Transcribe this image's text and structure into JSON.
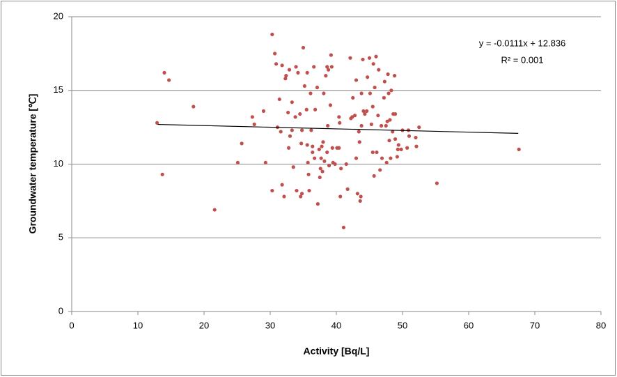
{
  "chart_data": {
    "type": "scatter",
    "xlabel": "Activity [Bq/L]",
    "ylabel": "Groundwater temperature [℃]",
    "xlim": [
      0,
      80
    ],
    "xticks": [
      0,
      10,
      20,
      30,
      40,
      50,
      60,
      70,
      80
    ],
    "ylim": [
      0,
      20
    ],
    "yticks": [
      0,
      5,
      10,
      15,
      20
    ],
    "grid": true,
    "series": [
      {
        "color": "#c0504d",
        "x": [
          12.9,
          13.7,
          14.0,
          14.7,
          18.4,
          21.6,
          25.7,
          25.1,
          27.3,
          27.6,
          29.0,
          29.3,
          30.3,
          30.3,
          30.7,
          30.9,
          31.1,
          31.4,
          31.6,
          31.8,
          31.8,
          32.1,
          32.3,
          32.4,
          32.7,
          32.8,
          32.9,
          33.0,
          33.3,
          33.3,
          33.5,
          33.8,
          33.9,
          34.0,
          34.2,
          34.5,
          34.6,
          34.8,
          35.0,
          34.8,
          34.7,
          35.2,
          35.6,
          35.5,
          35.6,
          35.7,
          35.8,
          35.9,
          36.1,
          36.2,
          36.4,
          36.4,
          36.6,
          36.7,
          36.8,
          37.1,
          37.2,
          37.4,
          37.5,
          37.6,
          37.7,
          37.8,
          37.9,
          38.0,
          38.1,
          38.2,
          38.4,
          38.6,
          38.6,
          38.7,
          38.8,
          38.9,
          39.1,
          39.2,
          39.3,
          39.4,
          39.5,
          39.8,
          40.1,
          40.4,
          40.4,
          40.5,
          40.6,
          40.7,
          41.1,
          41.5,
          41.7,
          42.1,
          42.2,
          42.4,
          42.5,
          42.8,
          43.0,
          43.0,
          43.2,
          43.4,
          43.5,
          43.6,
          43.7,
          43.8,
          43.8,
          44.1,
          44.3,
          44.6,
          44.7,
          44.0,
          45.0,
          45.1,
          45.3,
          45.5,
          45.5,
          45.6,
          45.7,
          45.8,
          46.0,
          46.1,
          46.3,
          46.4,
          46.6,
          46.8,
          46.9,
          47.2,
          47.3,
          47.5,
          47.6,
          47.7,
          47.8,
          47.9,
          48.0,
          48.1,
          48.2,
          48.3,
          48.5,
          48.6,
          48.8,
          48.9,
          48.9,
          49.2,
          49.3,
          49.4,
          49.8,
          50.0,
          50.7,
          50.9,
          51.0,
          52.0,
          52.1,
          52.5,
          55.2,
          67.6
        ],
        "values": [
          12.8,
          9.3,
          16.2,
          15.7,
          13.9,
          6.9,
          11.4,
          10.1,
          13.2,
          12.7,
          13.6,
          10.1,
          18.8,
          8.2,
          17.5,
          16.8,
          12.5,
          14.4,
          12.2,
          8.6,
          16.7,
          7.8,
          15.8,
          16.0,
          13.5,
          11.1,
          16.4,
          11.9,
          14.2,
          12.3,
          9.8,
          13.2,
          16.6,
          8.2,
          16.2,
          13.4,
          7.8,
          8.0,
          17.9,
          12.3,
          11.4,
          15.3,
          16.2,
          13.7,
          11.3,
          10.1,
          9.3,
          8.2,
          14.8,
          12.3,
          11.2,
          10.8,
          16.6,
          10.4,
          13.7,
          15.2,
          7.3,
          11.0,
          9.1,
          9.7,
          10.4,
          11.2,
          9.5,
          11.5,
          14.8,
          10.2,
          16.0,
          16.6,
          10.8,
          12.6,
          16.4,
          9.9,
          14.0,
          17.4,
          16.6,
          11.1,
          10.1,
          10.0,
          11.1,
          11.1,
          13.2,
          12.8,
          7.8,
          9.7,
          5.7,
          10.0,
          8.3,
          17.2,
          13.1,
          13.2,
          14.5,
          13.3,
          10.4,
          15.7,
          8.0,
          12.2,
          11.5,
          7.5,
          7.8,
          12.6,
          14.8,
          13.6,
          13.4,
          13.6,
          15.9,
          17.1,
          17.2,
          14.8,
          12.7,
          10.8,
          13.9,
          16.8,
          9.2,
          15.2,
          17.3,
          10.8,
          13.3,
          16.4,
          9.6,
          12.6,
          10.4,
          14.5,
          15.6,
          12.6,
          10.1,
          12.9,
          16.1,
          14.8,
          11.6,
          13.0,
          10.4,
          15.0,
          12.2,
          13.4,
          16.0,
          13.4,
          11.7,
          10.5,
          11.0,
          11.3,
          11.0,
          12.3,
          11.1,
          12.3,
          11.9,
          11.8,
          11.2,
          12.5,
          8.7,
          11.0
        ]
      }
    ],
    "trendline": {
      "slope": -0.0111,
      "intercept": 12.836,
      "x_start": 13,
      "x_end": 67.5,
      "color": "#000000",
      "equation": "y = -0.0111x + 12.836",
      "r_squared_label": "R² = 0.001"
    }
  }
}
